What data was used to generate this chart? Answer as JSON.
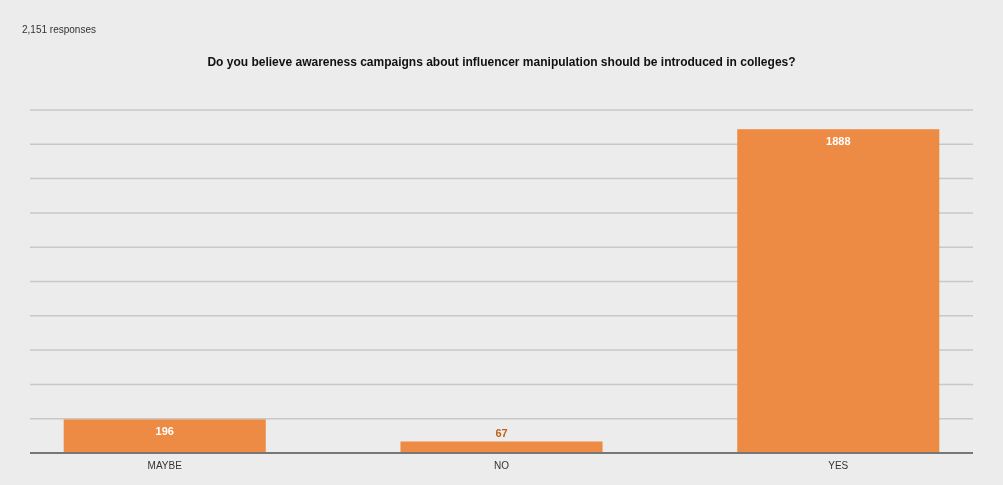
{
  "chart_data": {
    "type": "bar",
    "title": "Do you believe awareness campaigns about influencer manipulation should be introduced in colleges?",
    "annotations": [
      "2,151 responses"
    ],
    "categories": [
      "MAYBE",
      "NO",
      "YES"
    ],
    "values": [
      196,
      67,
      1888
    ],
    "color": "#ed8b45",
    "data_labels": true,
    "ylim": [
      0,
      2000
    ],
    "yticks": [
      {
        "value": 0,
        "label": null
      },
      {
        "value": 200,
        "label": null
      },
      {
        "value": 400,
        "label": null
      },
      {
        "value": 600,
        "label": null
      },
      {
        "value": 800,
        "label": null
      },
      {
        "value": 1000,
        "label": null
      },
      {
        "value": 1200,
        "label": null
      },
      {
        "value": 1400,
        "label": null
      },
      {
        "value": 1600,
        "label": null
      },
      {
        "value": 1800,
        "label": null
      },
      {
        "value": 2000,
        "label": null
      }
    ],
    "tick_labels": "x",
    "grid": "y"
  }
}
